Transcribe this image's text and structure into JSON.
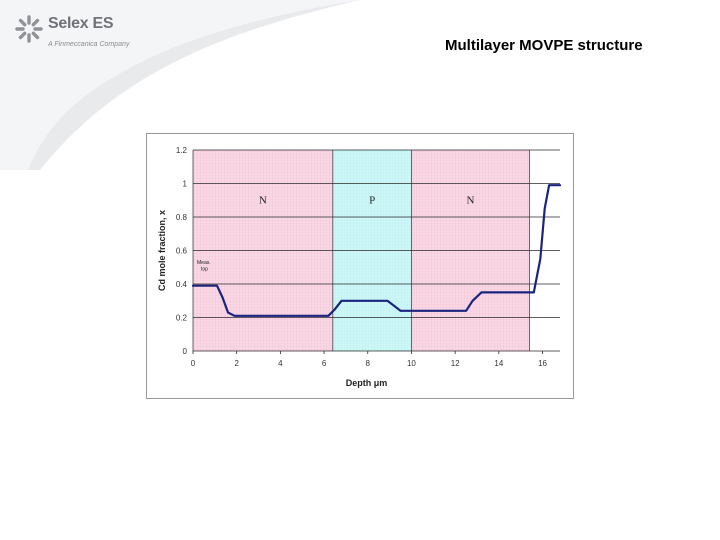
{
  "brand": {
    "name": "Selex ES",
    "tagline": "A Finmeccanica Company",
    "colors": {
      "mark": "#8f9297",
      "swoosh": "#e7e8eb"
    }
  },
  "slide": {
    "title": "Multilayer MOVPE structure"
  },
  "chart_data": {
    "type": "line",
    "title": "",
    "xlabel": "Depth μm",
    "ylabel": "Cd mole fraction, x",
    "xlim": [
      0,
      16.8
    ],
    "ylim": [
      0,
      1.2
    ],
    "x_ticks": [
      "0",
      "2",
      "4",
      "6",
      "8",
      "10",
      "12",
      "14",
      "16"
    ],
    "y_ticks": [
      "0",
      "0.2",
      "0.4",
      "0.6",
      "0.8",
      "1",
      "1.2"
    ],
    "grid": "horizontal major lines",
    "regions": [
      {
        "label": "N",
        "x_start": 0,
        "x_end": 6.4,
        "color": "#f6c9dc"
      },
      {
        "label": "P",
        "x_start": 6.4,
        "x_end": 10,
        "color": "#bdf3f3"
      },
      {
        "label": "N",
        "x_start": 10,
        "x_end": 15.4,
        "color": "#f6c9dc"
      }
    ],
    "annotation": {
      "line1": "Meas.",
      "line2": "top"
    },
    "series": [
      {
        "color": "#1a237e",
        "x": [
          0,
          1.1,
          1.35,
          1.6,
          1.9,
          6.2,
          6.5,
          6.8,
          8.9,
          9.2,
          9.5,
          10.5,
          12.5,
          12.8,
          13.2,
          15.6,
          15.9,
          16.1,
          16.3,
          16.8
        ],
        "y": [
          0.39,
          0.39,
          0.32,
          0.23,
          0.21,
          0.21,
          0.25,
          0.3,
          0.3,
          0.27,
          0.24,
          0.24,
          0.24,
          0.3,
          0.35,
          0.35,
          0.55,
          0.85,
          0.99,
          0.99
        ]
      }
    ]
  }
}
